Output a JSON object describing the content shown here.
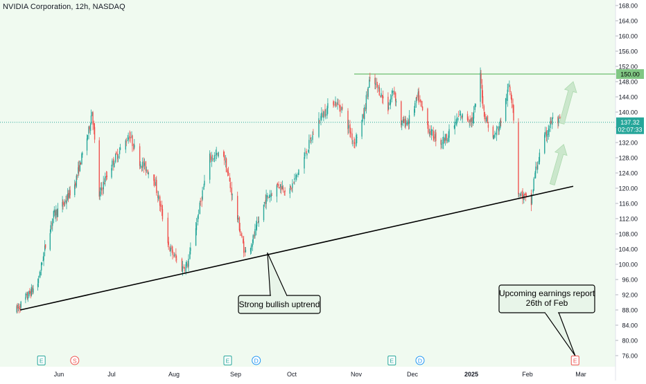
{
  "chart_data": {
    "type": "candlestick",
    "title": "NVIDIA Corporation, 12h, NASDAQ",
    "colors": {
      "up": "#26a69a",
      "down": "#ef5350",
      "background_tint": "#f0faf0",
      "annotation_fill": "#e8f5e9",
      "resistance_line": "#81c784",
      "price_line": "#26a69a",
      "trend_line": "#000000",
      "arrow_fill": "#c8e6c9"
    },
    "y_axis": {
      "range": [
        74,
        170
      ],
      "ticks": [
        "168.00",
        "164.00",
        "160.00",
        "156.00",
        "152.00",
        "148.00",
        "144.00",
        "140.00",
        "136.00",
        "132.00",
        "128.00",
        "124.00",
        "120.00",
        "116.00",
        "112.00",
        "108.00",
        "104.00",
        "100.00",
        "96.00",
        "92.00",
        "88.00",
        "84.00",
        "80.00",
        "76.00"
      ],
      "tick_values": [
        168,
        164,
        160,
        156,
        152,
        148,
        144,
        140,
        136,
        132,
        128,
        124,
        120,
        116,
        112,
        108,
        104,
        100,
        96,
        92,
        88,
        84,
        80,
        76
      ]
    },
    "x_axis": {
      "labels": [
        "Jun",
        "Jul",
        "Aug",
        "Sep",
        "Oct",
        "Nov",
        "Dec",
        "2025",
        "Feb",
        "Mar"
      ],
      "label_dates": [
        "2024-06-01",
        "2024-07-01",
        "2024-08-01",
        "2024-09-01",
        "2024-10-01",
        "2024-11-01",
        "2024-12-01",
        "2025-01-01",
        "2025-02-01",
        "2025-03-01"
      ],
      "bold_labels": [
        "2025"
      ],
      "range": [
        "2024-05-07",
        "2025-03-14"
      ]
    },
    "price_labels": {
      "resistance": "150.00",
      "last_price": "137.32",
      "countdown": "02:07:33"
    },
    "levels": {
      "resistance": 150.0,
      "last_price": 137.32
    },
    "ohlc_path": {
      "description_free": true,
      "points": [
        [
          "2024-05-08",
          88.0
        ],
        [
          "2024-05-14",
          91.5
        ],
        [
          "2024-05-20",
          95.0
        ],
        [
          "2024-05-24",
          104.0
        ],
        [
          "2024-05-29",
          113.0
        ],
        [
          "2024-06-04",
          116.0
        ],
        [
          "2024-06-10",
          121.0
        ],
        [
          "2024-06-18",
          135.0
        ],
        [
          "2024-06-20",
          140.5
        ],
        [
          "2024-06-24",
          118.0
        ],
        [
          "2024-06-28",
          123.0
        ],
        [
          "2024-07-03",
          128.0
        ],
        [
          "2024-07-10",
          134.0
        ],
        [
          "2024-07-15",
          127.0
        ],
        [
          "2024-07-22",
          123.0
        ],
        [
          "2024-07-30",
          104.0
        ],
        [
          "2024-08-05",
          99.0
        ],
        [
          "2024-08-08",
          100.0
        ],
        [
          "2024-08-12",
          110.0
        ],
        [
          "2024-08-19",
          128.0
        ],
        [
          "2024-08-26",
          129.0
        ],
        [
          "2024-08-30",
          119.0
        ],
        [
          "2024-09-06",
          103.0
        ],
        [
          "2024-09-10",
          106.0
        ],
        [
          "2024-09-17",
          117.0
        ],
        [
          "2024-09-24",
          121.0
        ],
        [
          "2024-09-30",
          119.0
        ],
        [
          "2024-10-07",
          128.0
        ],
        [
          "2024-10-14",
          138.0
        ],
        [
          "2024-10-21",
          143.0
        ],
        [
          "2024-10-25",
          141.0
        ],
        [
          "2024-10-31",
          132.0
        ],
        [
          "2024-11-05",
          139.0
        ],
        [
          "2024-11-08",
          148.0
        ],
        [
          "2024-11-12",
          147.0
        ],
        [
          "2024-11-18",
          141.0
        ],
        [
          "2024-11-21",
          146.0
        ],
        [
          "2024-11-25",
          137.0
        ],
        [
          "2024-11-29",
          137.5
        ],
        [
          "2024-12-04",
          144.0
        ],
        [
          "2024-12-10",
          135.0
        ],
        [
          "2024-12-16",
          132.0
        ],
        [
          "2024-12-20",
          134.0
        ],
        [
          "2024-12-26",
          139.0
        ],
        [
          "2025-01-02",
          138.0
        ],
        [
          "2025-01-06",
          149.5
        ],
        [
          "2025-01-08",
          140.0
        ],
        [
          "2025-01-13",
          133.0
        ],
        [
          "2025-01-17",
          137.0
        ],
        [
          "2025-01-22",
          147.0
        ],
        [
          "2025-01-24",
          142.0
        ],
        [
          "2025-01-27",
          119.0
        ],
        [
          "2025-02-03",
          116.0
        ],
        [
          "2025-02-05",
          124.0
        ],
        [
          "2025-02-10",
          133.0
        ],
        [
          "2025-02-14",
          138.0
        ],
        [
          "2025-02-18",
          137.32
        ]
      ]
    },
    "trendline": {
      "from": {
        "date": "2024-05-10",
        "price": 88.0
      },
      "to": {
        "date": "2025-02-25",
        "price": 120.5
      }
    },
    "arrows": [
      {
        "from_date": "2025-02-14",
        "from_price": 121.0,
        "to_date": "2025-02-20",
        "to_price": 131.5
      },
      {
        "from_date": "2025-02-19",
        "from_price": 137.0,
        "to_date": "2025-02-25",
        "to_price": 148.0
      }
    ],
    "annotations": [
      {
        "id": "uptrend",
        "text": "Strong bullish uptrend",
        "lines": [
          "Strong bullish uptrend"
        ],
        "pointer": {
          "date": "2024-09-18",
          "price": 103.0
        }
      },
      {
        "id": "earnings",
        "text": "Upcoming earnings report 26th of Feb",
        "lines": [
          "Upcoming earnings report",
          "26th of Feb"
        ],
        "pointer": {
          "date": "2025-02-26",
          "price": 76.0
        }
      }
    ],
    "event_markers": [
      {
        "letter": "E",
        "date": "2024-05-22",
        "kind": "earnings"
      },
      {
        "letter": "S",
        "date": "2024-06-10",
        "kind": "split"
      },
      {
        "letter": "E",
        "date": "2024-08-28",
        "kind": "earnings"
      },
      {
        "letter": "D",
        "date": "2024-09-12",
        "kind": "dividend"
      },
      {
        "letter": "E",
        "date": "2024-11-20",
        "kind": "earnings"
      },
      {
        "letter": "D",
        "date": "2024-12-05",
        "kind": "dividend"
      },
      {
        "letter": "E",
        "date": "2025-02-26",
        "kind": "earnings-upcoming"
      }
    ]
  }
}
